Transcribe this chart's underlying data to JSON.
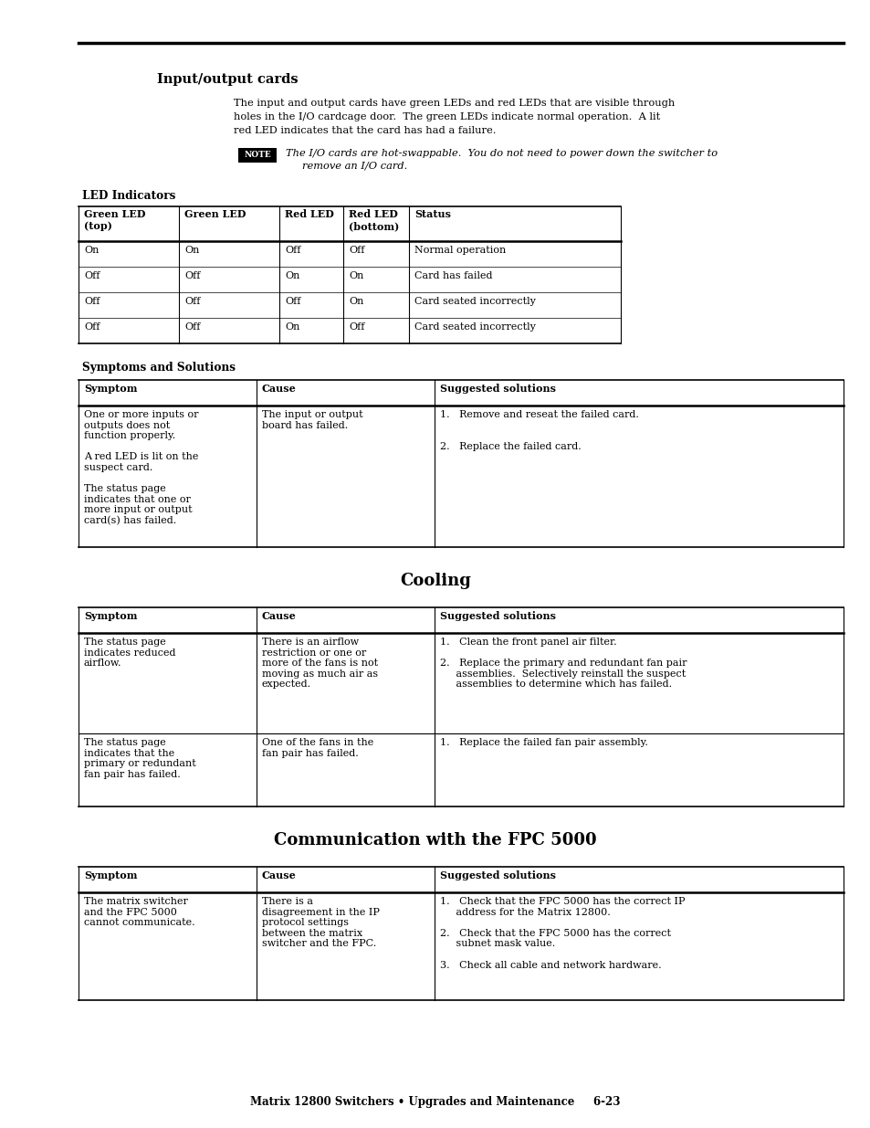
{
  "page_bg": "#ffffff",
  "section1_title": "Input/output cards",
  "section1_body1": "The input and output cards have green LEDs and red LEDs that are visible through",
  "section1_body2": "holes in the I/O cardcage door.  The green LEDs indicate normal operation.  A lit",
  "section1_body3": "red LED indicates that the card has had a failure.",
  "note_label": "NOTE",
  "note_text1": "The I/O cards are hot-swappable.  You do not need to power down the switcher to",
  "note_text2": "remove an I/O card.",
  "led_section_label": "LED Indicators",
  "led_headers": [
    "Green LED\n(top)",
    "Green LED",
    "Red LED",
    "Red LED\n(bottom)",
    "Status"
  ],
  "led_rows": [
    [
      "On",
      "On",
      "Off",
      "Off",
      "Normal operation"
    ],
    [
      "Off",
      "Off",
      "On",
      "On",
      "Card has failed"
    ],
    [
      "Off",
      "Off",
      "Off",
      "On",
      "Card seated incorrectly"
    ],
    [
      "Off",
      "Off",
      "On",
      "Off",
      "Card seated incorrectly"
    ]
  ],
  "symsol_label": "Symptoms and Solutions",
  "symsol_headers": [
    "Symptom",
    "Cause",
    "Suggested solutions"
  ],
  "symsol_col1": "One or more inputs or\noutputs does not\nfunction properly.\n\nA red LED is lit on the\nsuspect card.\n\nThe status page\nindicates that one or\nmore input or output\ncard(s) has failed.",
  "symsol_col2": "The input or output\nboard has failed.",
  "symsol_col3": "1.   Remove and reseat the failed card.\n\n\n2.   Replace the failed card.",
  "section2_title": "Cooling",
  "cooling_headers": [
    "Symptom",
    "Cause",
    "Suggested solutions"
  ],
  "cooling_r1c1": "The status page\nindicates reduced\nairflow.",
  "cooling_r1c2": "There is an airflow\nrestriction or one or\nmore of the fans is not\nmoving as much air as\nexpected.",
  "cooling_r1c3": "1.   Clean the front panel air filter.\n\n2.   Replace the primary and redundant fan pair\n     assemblies.  Selectively reinstall the suspect\n     assemblies to determine which has failed.",
  "cooling_r2c1": "The status page\nindicates that the\nprimary or redundant\nfan pair has failed.",
  "cooling_r2c2": "One of the fans in the\nfan pair has failed.",
  "cooling_r2c3": "1.   Replace the failed fan pair assembly.",
  "section3_title": "Communication with the FPC 5000",
  "fpc_headers": [
    "Symptom",
    "Cause",
    "Suggested solutions"
  ],
  "fpc_r1c1": "The matrix switcher\nand the FPC 5000\ncannot communicate.",
  "fpc_r1c2": "There is a\ndisagreement in the IP\nprotocol settings\nbetween the matrix\nswitcher and the FPC.",
  "fpc_r1c3": "1.   Check that the FPC 5000 has the correct IP\n     address for the Matrix 12800.\n\n2.   Check that the FPC 5000 has the correct\n     subnet mask value.\n\n3.   Check all cable and network hardware.",
  "footer": "Matrix 12800 Switchers • Upgrades and Maintenance     6-23"
}
